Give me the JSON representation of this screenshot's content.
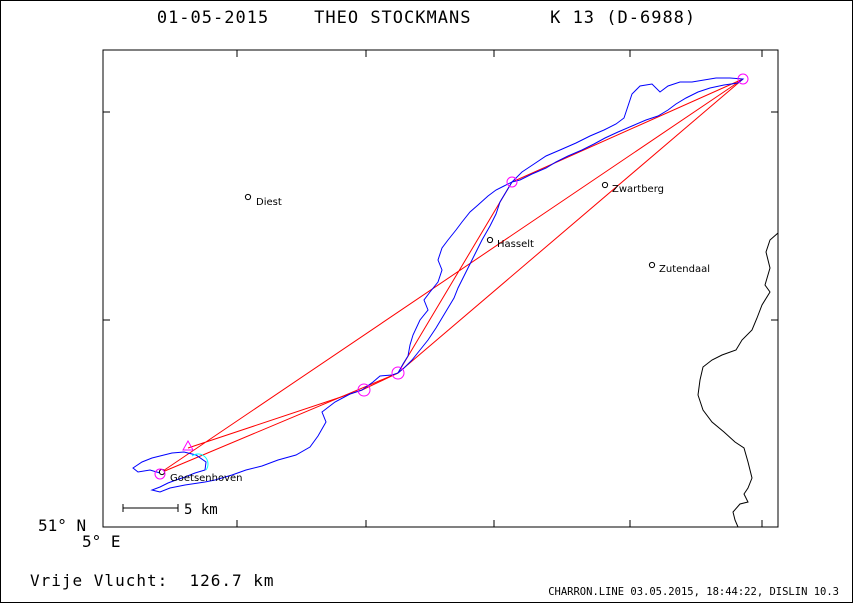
{
  "title": {
    "date": "01-05-2015",
    "pilot": "THEO STOCKMANS",
    "glider": "K 13 (D-6988)"
  },
  "corner_coordinates": {
    "latitude": "51° N",
    "longitude": "5° E"
  },
  "scale_bar": {
    "label": "5 km"
  },
  "places": [
    {
      "name": "Diest",
      "id": "diest"
    },
    {
      "name": "Hasselt",
      "id": "hasselt"
    },
    {
      "name": "Zwartberg",
      "id": "zwartberg"
    },
    {
      "name": "Zutendaal",
      "id": "zutendaal"
    },
    {
      "name": "Goetsenhoven",
      "id": "goetsenhoven"
    }
  ],
  "flight": {
    "type_label": "Vrije Vlucht:",
    "distance": "126.7 km"
  },
  "footer": "CHARRON.LINE 03.05.2015, 18:44:22, DISLIN 10.3",
  "colors": {
    "track": "#0000ff",
    "task_lines": "#ff0000",
    "turnpoints": "#ff00ff",
    "start_circle": "#00ffff",
    "border": "#000000"
  }
}
